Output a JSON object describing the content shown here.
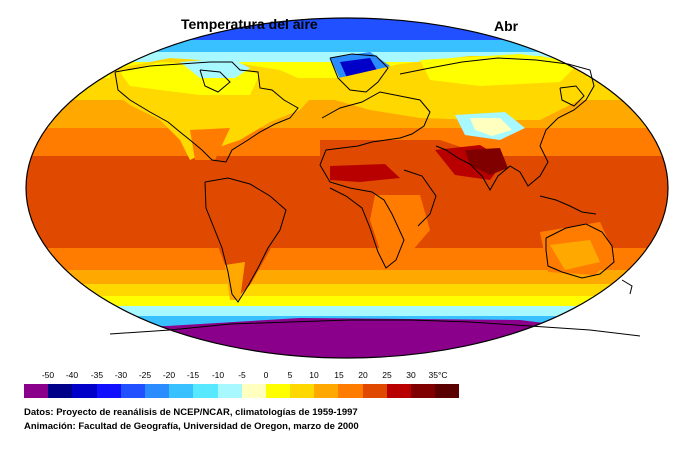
{
  "map": {
    "title": "Temperatura del aire",
    "month": "Abr"
  },
  "legend": {
    "tick_labels": [
      "-50",
      "-40",
      "-35",
      "-30",
      "-25",
      "-20",
      "-15",
      "-10",
      "-5",
      "0",
      "5",
      "10",
      "15",
      "20",
      "25",
      "30",
      "35°C"
    ],
    "colors": [
      "#8b008b",
      "#000088",
      "#0000c8",
      "#1010ff",
      "#2050ff",
      "#2a8cff",
      "#38c0ff",
      "#58e8ff",
      "#a8f8ff",
      "#ffffc0",
      "#ffff00",
      "#ffd800",
      "#ffa800",
      "#ff7c00",
      "#e04a00",
      "#b80000",
      "#800000",
      "#5a0000"
    ]
  },
  "credits": {
    "line1": "Datos: Proyecto de reanálisis de NCEP/NCAR, climatologías de 1959-1997",
    "line2": "Animación: Facultad de Geografía, Universidad de Oregon, marzo de 2000"
  }
}
